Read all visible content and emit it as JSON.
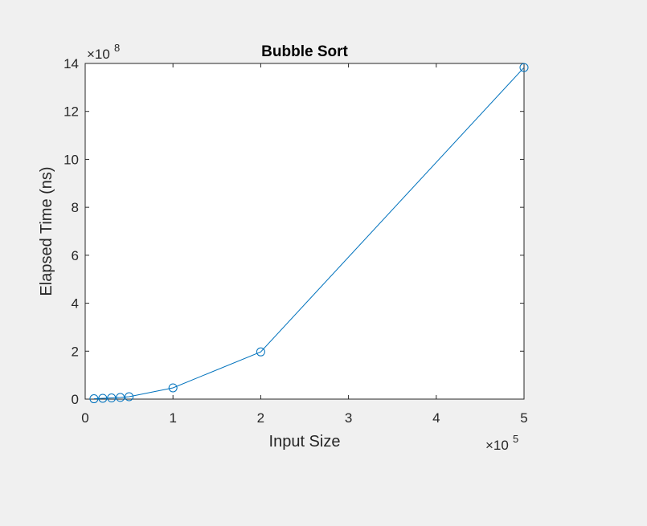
{
  "chart_data": {
    "type": "line",
    "title": "Bubble Sort",
    "xlabel": "Input Size",
    "ylabel": "Elapsed Time (ns)",
    "x_exponent_label": "×10",
    "x_exponent": "5",
    "y_exponent_label": "×10",
    "y_exponent": "8",
    "x_multiplier": 100000,
    "y_multiplier": 100000000,
    "xlim": [
      0,
      500000
    ],
    "ylim": [
      0,
      1400000000
    ],
    "x_ticks": [
      0,
      100000,
      200000,
      300000,
      400000,
      500000
    ],
    "x_tick_labels": [
      "0",
      "1",
      "2",
      "3",
      "4",
      "5"
    ],
    "y_ticks": [
      0,
      200000000,
      400000000,
      600000000,
      800000000,
      1000000000,
      1200000000,
      1400000000
    ],
    "y_tick_labels": [
      "0",
      "2",
      "4",
      "6",
      "8",
      "10",
      "12",
      "14"
    ],
    "grid": false,
    "marker": "circle",
    "series": [
      {
        "color": "#0072bd",
        "x": [
          10000,
          20000,
          30000,
          40000,
          50000,
          100000,
          200000,
          500000
        ],
        "y": [
          1500000,
          3500000,
          5000000,
          7000000,
          10000000,
          47000000,
          197000000,
          1383000000
        ]
      }
    ]
  }
}
